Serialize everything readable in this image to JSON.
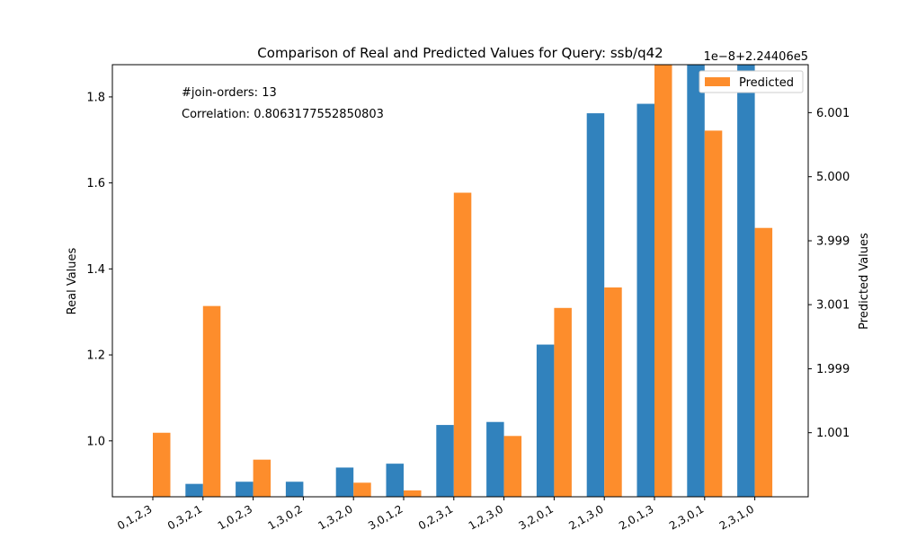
{
  "chart_data": {
    "type": "bar",
    "title": "Comparison of Real and Predicted Values for Query: ssb/q42",
    "ylabel_left": "Real Values",
    "ylabel_right": "Predicted Values",
    "right_axis_offset_label": "1e−8+2.24406e5",
    "annotations": [
      "#join-orders: 13",
      "Correlation: 0.8063177552850803"
    ],
    "legend": {
      "position": "top-right",
      "entries": [
        "Predicted"
      ]
    },
    "grid": false,
    "categories": [
      "0,1,2,3",
      "0,3,2,1",
      "1,0,2,3",
      "1,3,0,2",
      "1,3,2,0",
      "3,0,1,2",
      "0,2,3,1",
      "1,2,3,0",
      "3,2,0,1",
      "2,1,3,0",
      "2,0,1,3",
      "2,3,0,1",
      "2,3,1,0"
    ],
    "left_axis": {
      "ylim": [
        0.87,
        1.875
      ],
      "ticks": [
        1.0,
        1.2,
        1.4,
        1.6,
        1.8
      ],
      "tick_labels": [
        "1.0",
        "1.2",
        "1.4",
        "1.6",
        "1.8"
      ]
    },
    "right_axis": {
      "ylim": [
        0.0,
        6.75
      ],
      "ticks": [
        1.001,
        1.999,
        3.001,
        3.999,
        5.0,
        6.001
      ],
      "tick_labels": [
        "1.001",
        "1.999",
        "3.001",
        "3.999",
        "5.000",
        "6.001"
      ]
    },
    "series": [
      {
        "name": "",
        "axis": "left",
        "color": "#3182bd",
        "values": [
          0.87,
          0.9,
          0.905,
          0.905,
          0.938,
          0.947,
          1.037,
          1.044,
          1.224,
          1.762,
          1.784,
          1.878,
          1.878
        ]
      },
      {
        "name": "Predicted",
        "axis": "right",
        "color": "#fd8d2c",
        "values": [
          1.0,
          2.98,
          0.58,
          0.0,
          0.22,
          0.1,
          4.75,
          0.95,
          2.95,
          3.27,
          6.8,
          5.72,
          4.2
        ]
      }
    ]
  }
}
